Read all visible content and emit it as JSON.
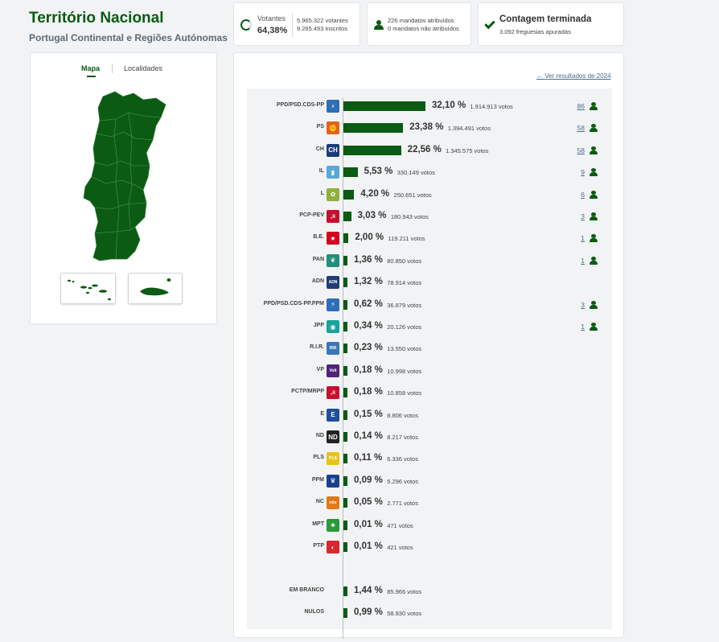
{
  "header": {
    "title": "Território Nacional",
    "subtitle": "Portugal Continental e Regiões Autónomas"
  },
  "stats": {
    "votantes_label": "Votantes",
    "votantes_pct": "64,38%",
    "votantes_count": "5.965.322 votantes",
    "inscritos": "9.265.493 inscritos",
    "mandatos_atribuidos": "226 mandatos atribuídos",
    "mandatos_nao": "0 mandatos não atribuídos",
    "contagem_title": "Contagem terminada",
    "freguesias": "3.092 freguesias apuradas"
  },
  "map": {
    "tab_mapa": "Mapa",
    "tab_localidades": "Localidades",
    "fill_color": "#0b5b12"
  },
  "results": {
    "prev_link": "Ver resultados de 2024",
    "parties": [
      {
        "name": "PPD/PSD.CDS-PP",
        "pct_value": 32.1,
        "pct": "32,10 %",
        "votes": "1.914.913 votos",
        "seats": "86",
        "logo_color": "#2d6fb7",
        "logo_text": "⚡"
      },
      {
        "name": "PS",
        "pct_value": 23.38,
        "pct": "23,38 %",
        "votes": "1.394.491 votos",
        "seats": "58",
        "logo_color": "#e2621a",
        "logo_text": "✊"
      },
      {
        "name": "CH",
        "pct_value": 22.56,
        "pct": "22,56 %",
        "votes": "1.345.575 votos",
        "seats": "58",
        "logo_color": "#1b3c7a",
        "logo_text": "CH"
      },
      {
        "name": "IL",
        "pct_value": 5.53,
        "pct": "5,53 %",
        "votes": "330.149 votos",
        "seats": "9",
        "logo_color": "#58a8d8",
        "logo_text": "▮"
      },
      {
        "name": "L",
        "pct_value": 4.2,
        "pct": "4,20 %",
        "votes": "250.651 votos",
        "seats": "6",
        "logo_color": "#8fb03a",
        "logo_text": "✿"
      },
      {
        "name": "PCP-PEV",
        "pct_value": 3.03,
        "pct": "3,03 %",
        "votes": "180.943 votos",
        "seats": "3",
        "logo_color": "#c8102e",
        "logo_text": "☭"
      },
      {
        "name": "B.E.",
        "pct_value": 2.0,
        "pct": "2,00 %",
        "votes": "119.211 votos",
        "seats": "1",
        "logo_color": "#d2001e",
        "logo_text": "★"
      },
      {
        "name": "PAN",
        "pct_value": 1.36,
        "pct": "1,36 %",
        "votes": "80.850 votos",
        "seats": "1",
        "logo_color": "#1f8f7a",
        "logo_text": "❦"
      },
      {
        "name": "ADN",
        "pct_value": 1.32,
        "pct": "1,32 %",
        "votes": "78.914 votos",
        "seats": "",
        "logo_color": "#1e3d73",
        "logo_text": "ADN"
      },
      {
        "name": "PPD/PSD.CDS-PP.PPM",
        "pct_value": 0.62,
        "pct": "0,62 %",
        "votes": "36.879 votos",
        "seats": "3",
        "logo_color": "#2d6fb7",
        "logo_text": "⚡"
      },
      {
        "name": "JPP",
        "pct_value": 0.34,
        "pct": "0,34 %",
        "votes": "20.126 votos",
        "seats": "1",
        "logo_color": "#17a49a",
        "logo_text": "◉"
      },
      {
        "name": "R.I.R.",
        "pct_value": 0.23,
        "pct": "0,23 %",
        "votes": "13.550 votos",
        "seats": "",
        "logo_color": "#3a78b5",
        "logo_text": "RIR"
      },
      {
        "name": "VP",
        "pct_value": 0.18,
        "pct": "0,18 %",
        "votes": "10.998 votos",
        "seats": "",
        "logo_color": "#502379",
        "logo_text": "Volt"
      },
      {
        "name": "PCTP/MRPP",
        "pct_value": 0.18,
        "pct": "0,18 %",
        "votes": "10.858 votos",
        "seats": "",
        "logo_color": "#c8102e",
        "logo_text": "☭"
      },
      {
        "name": "E",
        "pct_value": 0.15,
        "pct": "0,15 %",
        "votes": "8.806 votos",
        "seats": "",
        "logo_color": "#1d4f9c",
        "logo_text": "E"
      },
      {
        "name": "ND",
        "pct_value": 0.14,
        "pct": "0,14 %",
        "votes": "8.217 votos",
        "seats": "",
        "logo_color": "#222222",
        "logo_text": "ND"
      },
      {
        "name": "PLS",
        "pct_value": 0.11,
        "pct": "0,11 %",
        "votes": "6.336 votos",
        "seats": "",
        "logo_color": "#e6c419",
        "logo_text": "PLS"
      },
      {
        "name": "PPM",
        "pct_value": 0.09,
        "pct": "0,09 %",
        "votes": "5.296 votos",
        "seats": "",
        "logo_color": "#1a3f8f",
        "logo_text": "♛"
      },
      {
        "name": "NC",
        "pct_value": 0.05,
        "pct": "0,05 %",
        "votes": "2.771 votos",
        "seats": "",
        "logo_color": "#e07b14",
        "logo_text": "nós"
      },
      {
        "name": "MPT",
        "pct_value": 0.01,
        "pct": "0,01 %",
        "votes": "471 votos",
        "seats": "",
        "logo_color": "#2a9a3a",
        "logo_text": "♣"
      },
      {
        "name": "PTP",
        "pct_value": 0.01,
        "pct": "0,01 %",
        "votes": "421 votos",
        "seats": "",
        "logo_color": "#d8282e",
        "logo_text": "◐"
      }
    ],
    "others": [
      {
        "name": "EM BRANCO",
        "pct_value": 1.44,
        "pct": "1,44 %",
        "votes": "85.966 votos"
      },
      {
        "name": "NULOS",
        "pct_value": 0.99,
        "pct": "0,99 %",
        "votes": "58.930 votos"
      }
    ]
  }
}
